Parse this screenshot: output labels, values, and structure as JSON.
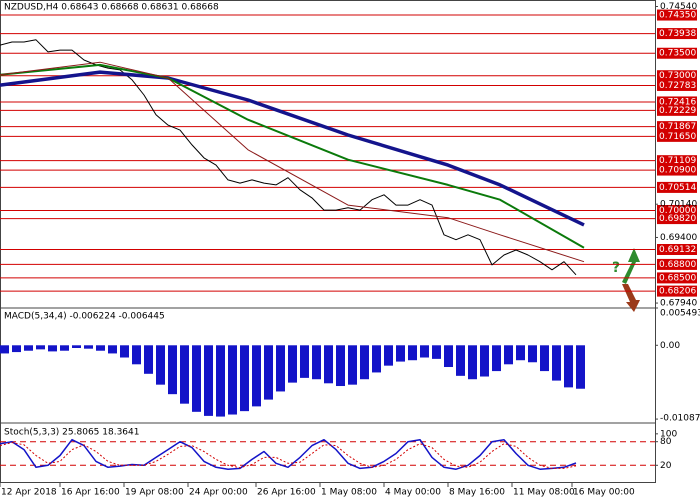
{
  "chart_data": [
    {
      "type": "line",
      "title": "NZDUSD,H4  0.68643 0.68668 0.68631 0.68668",
      "annotation": "?",
      "xlim": [
        0,
        148
      ],
      "ylim": [
        0.6783,
        0.74685
      ],
      "yticks": [
        {
          "value": 0.7454,
          "label": "0.74540"
        },
        {
          "value": 0.7014,
          "label": "0.70140"
        },
        {
          "value": 0.694,
          "label": "0.69400"
        },
        {
          "value": 0.6794,
          "label": "0.67940"
        }
      ],
      "levels": [
        {
          "value": 0.7435,
          "label": "0.74350"
        },
        {
          "value": 0.73938,
          "label": "0.73938"
        },
        {
          "value": 0.735,
          "label": "0.73500"
        },
        {
          "value": 0.73,
          "label": "0.73000"
        },
        {
          "value": 0.72783,
          "label": "0.72783"
        },
        {
          "value": 0.72416,
          "label": "0.72416"
        },
        {
          "value": 0.72229,
          "label": "0.72229"
        },
        {
          "value": 0.71867,
          "label": "0.71867"
        },
        {
          "value": 0.7165,
          "label": "0.71650"
        },
        {
          "value": 0.71109,
          "label": "0.71109"
        },
        {
          "value": 0.709,
          "label": "0.70900"
        },
        {
          "value": 0.70514,
          "label": "0.70514"
        },
        {
          "value": 0.7,
          "label": "0.70000"
        },
        {
          "value": 0.6982,
          "label": "0.69820"
        },
        {
          "value": 0.69132,
          "label": "0.69132"
        },
        {
          "value": 0.688,
          "label": "0.68800"
        },
        {
          "value": 0.685,
          "label": "0.68500"
        },
        {
          "value": 0.68206,
          "label": "0.68206"
        }
      ],
      "level_color": "#d20000",
      "series": [
        {
          "color": "#000000",
          "width": 1,
          "x": [
            0,
            3,
            6,
            9,
            12,
            15,
            18,
            21,
            24,
            27,
            30,
            33,
            36,
            39,
            42,
            45,
            48,
            51,
            54,
            57,
            60,
            63,
            66,
            69,
            72,
            75,
            78,
            81,
            84,
            87,
            90,
            93,
            96,
            99,
            102,
            105,
            108,
            111,
            114,
            117,
            120,
            123,
            126,
            129,
            132,
            135,
            138,
            141,
            144
          ],
          "values": [
            0.7368,
            0.7375,
            0.7375,
            0.738,
            0.7353,
            0.7357,
            0.7357,
            0.7335,
            0.7324,
            0.7317,
            0.7313,
            0.7291,
            0.7257,
            0.7213,
            0.719,
            0.7179,
            0.7146,
            0.7117,
            0.7101,
            0.7068,
            0.7061,
            0.7068,
            0.7061,
            0.7057,
            0.7073,
            0.7046,
            0.7028,
            0.7001,
            0.7001,
            0.7006,
            0.7001,
            0.7024,
            0.7035,
            0.7012,
            0.7012,
            0.7024,
            0.7012,
            0.6946,
            0.6935,
            0.6946,
            0.6935,
            0.6879,
            0.6901,
            0.6912,
            0.6901,
            0.6886,
            0.6868,
            0.6886,
            0.6857
          ]
        },
        {
          "color": "#14148c",
          "width": 3.5,
          "x": [
            0,
            25,
            42,
            62,
            87,
            112,
            125,
            146
          ],
          "values": [
            0.7279,
            0.7308,
            0.7295,
            0.7246,
            0.7168,
            0.7101,
            0.7057,
            0.6968
          ]
        },
        {
          "color": "#0b7a0b",
          "width": 2,
          "x": [
            0,
            25,
            42,
            62,
            87,
            112,
            125,
            146
          ],
          "values": [
            0.7302,
            0.7324,
            0.7295,
            0.7202,
            0.7113,
            0.7057,
            0.7024,
            0.6917
          ]
        },
        {
          "color": "#8b1a1a",
          "width": 1,
          "x": [
            0,
            25,
            42,
            62,
            87,
            112,
            125,
            146
          ],
          "values": [
            0.7302,
            0.733,
            0.7295,
            0.7135,
            0.7012,
            0.6984,
            0.6946,
            0.6886
          ]
        }
      ]
    },
    {
      "type": "bar",
      "title": "MACD(5,34,4) -0.006224 -0.006445",
      "color": "#1414c8",
      "xlim": [
        0,
        148
      ],
      "ylim": [
        -0.0113,
        0.005493
      ],
      "yticks": [
        0.005493,
        {
          "value": 0,
          "label": "0.00"
        },
        -0.01087
      ],
      "x": [
        0,
        3,
        6,
        9,
        12,
        15,
        18,
        21,
        24,
        27,
        30,
        33,
        36,
        39,
        42,
        45,
        48,
        51,
        54,
        57,
        60,
        63,
        66,
        69,
        72,
        75,
        78,
        81,
        84,
        87,
        90,
        93,
        96,
        99,
        102,
        105,
        108,
        111,
        114,
        117,
        120,
        123,
        126,
        129,
        132,
        135,
        138,
        141,
        144
      ],
      "values": [
        -0.0012,
        -0.001,
        -0.0008,
        -0.0006,
        -0.0009,
        -0.0008,
        -0.0004,
        -0.0005,
        -0.0008,
        -0.0012,
        -0.0018,
        -0.0028,
        -0.0042,
        -0.0058,
        -0.0072,
        -0.0086,
        -0.0098,
        -0.0104,
        -0.0105,
        -0.0102,
        -0.0097,
        -0.009,
        -0.008,
        -0.0068,
        -0.0055,
        -0.0048,
        -0.005,
        -0.0056,
        -0.006,
        -0.0058,
        -0.005,
        -0.004,
        -0.003,
        -0.0024,
        -0.0022,
        -0.0018,
        -0.002,
        -0.0032,
        -0.0045,
        -0.005,
        -0.0046,
        -0.0038,
        -0.0028,
        -0.0022,
        -0.0025,
        -0.0038,
        -0.0052,
        -0.0062,
        -0.0064
      ]
    },
    {
      "type": "line",
      "title": "Stoch(5,3,3) 25.8065 18.3641",
      "xlim": [
        0,
        148
      ],
      "ylim": [
        -25,
        125
      ],
      "yticks": [
        100,
        80,
        20
      ],
      "levels": [
        80,
        20
      ],
      "level_color": "#d20000",
      "xticks": [
        {
          "value": 0,
          "label": "12 Apr 2018"
        },
        {
          "value": 15,
          "label": "16 Apr 16:00"
        },
        {
          "value": 31,
          "label": "19 Apr 08:00"
        },
        {
          "value": 47,
          "label": "24 Apr 00:00"
        },
        {
          "value": 64,
          "label": "26 Apr 16:00"
        },
        {
          "value": 80,
          "label": "1 May 08:00"
        },
        {
          "value": 96,
          "label": "4 May 00:00"
        },
        {
          "value": 112,
          "label": "8 May 16:00"
        },
        {
          "value": 128,
          "label": "11 May 08:00"
        },
        {
          "value": 143,
          "label": "16 May 00:00"
        }
      ],
      "series": [
        {
          "color": "#1414c8",
          "width": 1.5,
          "x": [
            0,
            3,
            6,
            9,
            12,
            15,
            18,
            21,
            24,
            27,
            30,
            33,
            36,
            39,
            42,
            45,
            48,
            51,
            54,
            57,
            60,
            63,
            66,
            69,
            72,
            75,
            78,
            81,
            84,
            87,
            90,
            93,
            96,
            99,
            102,
            105,
            108,
            111,
            114,
            117,
            120,
            123,
            126,
            129,
            132,
            135,
            138,
            141,
            144
          ],
          "values": [
            75,
            80,
            60,
            15,
            20,
            45,
            85,
            70,
            30,
            15,
            18,
            22,
            20,
            40,
            60,
            80,
            65,
            30,
            15,
            10,
            12,
            35,
            55,
            25,
            15,
            40,
            70,
            85,
            60,
            25,
            12,
            15,
            30,
            50,
            80,
            85,
            40,
            15,
            10,
            20,
            45,
            80,
            85,
            50,
            20,
            10,
            12,
            15,
            25.8065
          ]
        },
        {
          "color": "#d20000",
          "width": 1,
          "dash": true,
          "x": [
            0,
            3,
            6,
            9,
            12,
            15,
            18,
            21,
            24,
            27,
            30,
            33,
            36,
            39,
            42,
            45,
            48,
            51,
            54,
            57,
            60,
            63,
            66,
            69,
            72,
            75,
            78,
            81,
            84,
            87,
            90,
            93,
            96,
            99,
            102,
            105,
            108,
            111,
            114,
            117,
            120,
            123,
            126,
            129,
            132,
            135,
            138,
            141,
            144
          ],
          "values": [
            70,
            78,
            72,
            45,
            25,
            30,
            60,
            72,
            55,
            30,
            20,
            20,
            20,
            30,
            48,
            68,
            70,
            55,
            35,
            20,
            14,
            22,
            40,
            40,
            25,
            28,
            50,
            72,
            70,
            45,
            25,
            15,
            20,
            35,
            60,
            75,
            65,
            35,
            18,
            15,
            28,
            55,
            75,
            68,
            40,
            20,
            12,
            12,
            18.3641
          ]
        }
      ]
    }
  ]
}
